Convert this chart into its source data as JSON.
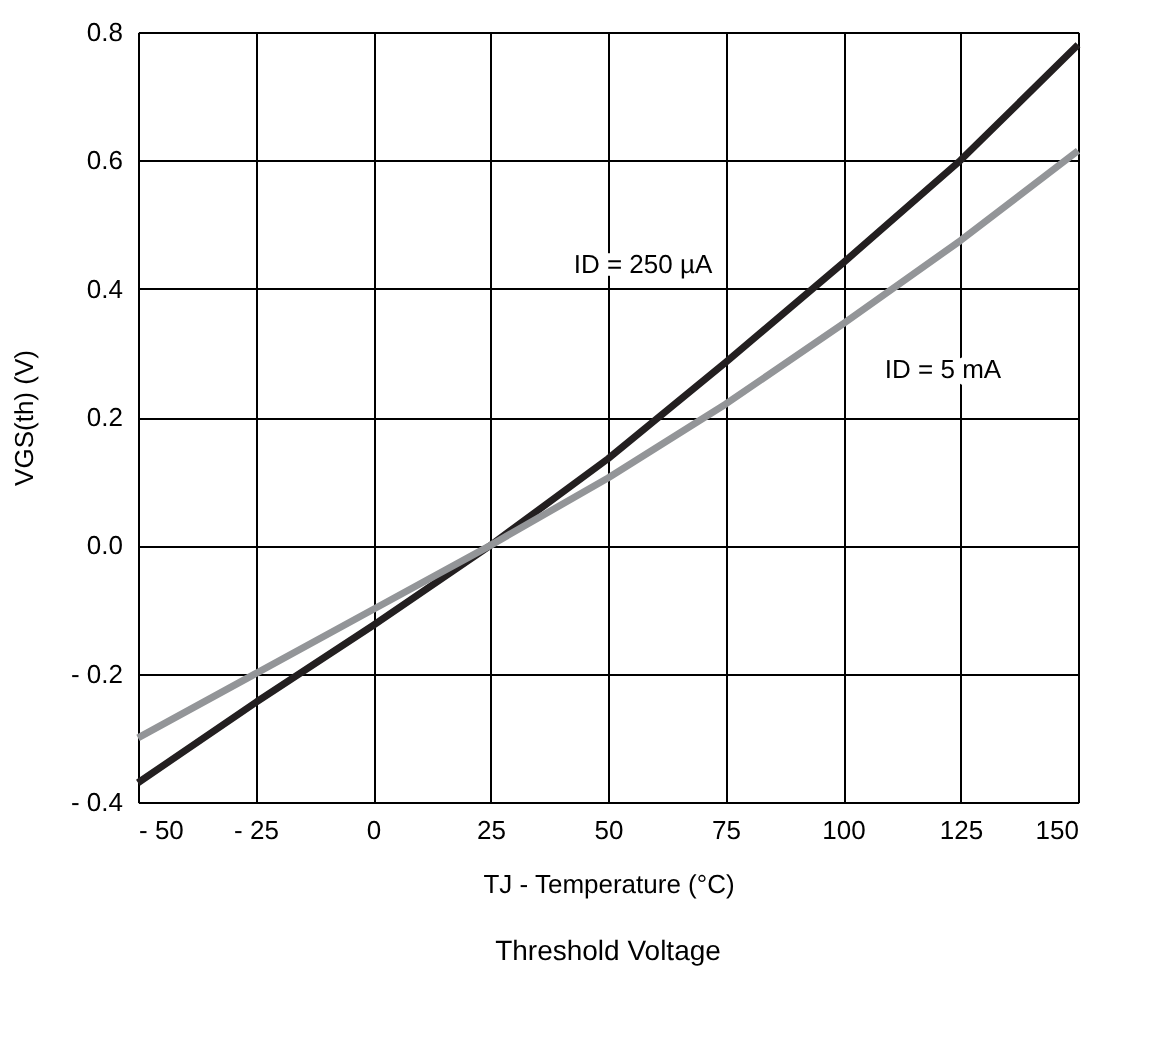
{
  "chart_data": {
    "type": "line",
    "title": "Threshold Voltage",
    "xlabel": "TJ - Temperature (°C)",
    "ylabel": "VGS(th) (V)",
    "x": [
      -50,
      -25,
      0,
      25,
      50,
      75,
      100,
      125,
      150
    ],
    "series": [
      {
        "name": "ID = 250 µA",
        "color": "#231f20",
        "values": [
          -0.37,
          -0.245,
          -0.125,
          0,
          0.135,
          0.285,
          0.44,
          0.6,
          0.78
        ]
      },
      {
        "name": "ID = 5 mA",
        "color": "#939598",
        "values": [
          -0.3,
          -0.2,
          -0.1,
          0,
          0.105,
          0.22,
          0.345,
          0.475,
          0.615
        ]
      }
    ],
    "xlim": [
      -50,
      150
    ],
    "xticks": [
      {
        "value": -50,
        "label": "- 50"
      },
      {
        "value": -25,
        "label": "- 25"
      },
      0,
      25,
      50,
      75,
      100,
      125,
      150
    ],
    "ylim": [
      -0.4,
      0.8
    ],
    "yticks": [
      {
        "value": -0.4,
        "label": "- 0.4"
      },
      {
        "value": -0.2,
        "label": "- 0.2"
      },
      {
        "value": 0,
        "label": "0.0"
      },
      {
        "value": 0.2,
        "label": "0.2"
      },
      {
        "value": 0.4,
        "label": "0.4"
      },
      {
        "value": 0.6,
        "label": "0.6"
      },
      {
        "value": 0.8,
        "label": "0.8"
      }
    ],
    "grid": true,
    "legend": false,
    "line_style": "solid",
    "marker": "none"
  }
}
